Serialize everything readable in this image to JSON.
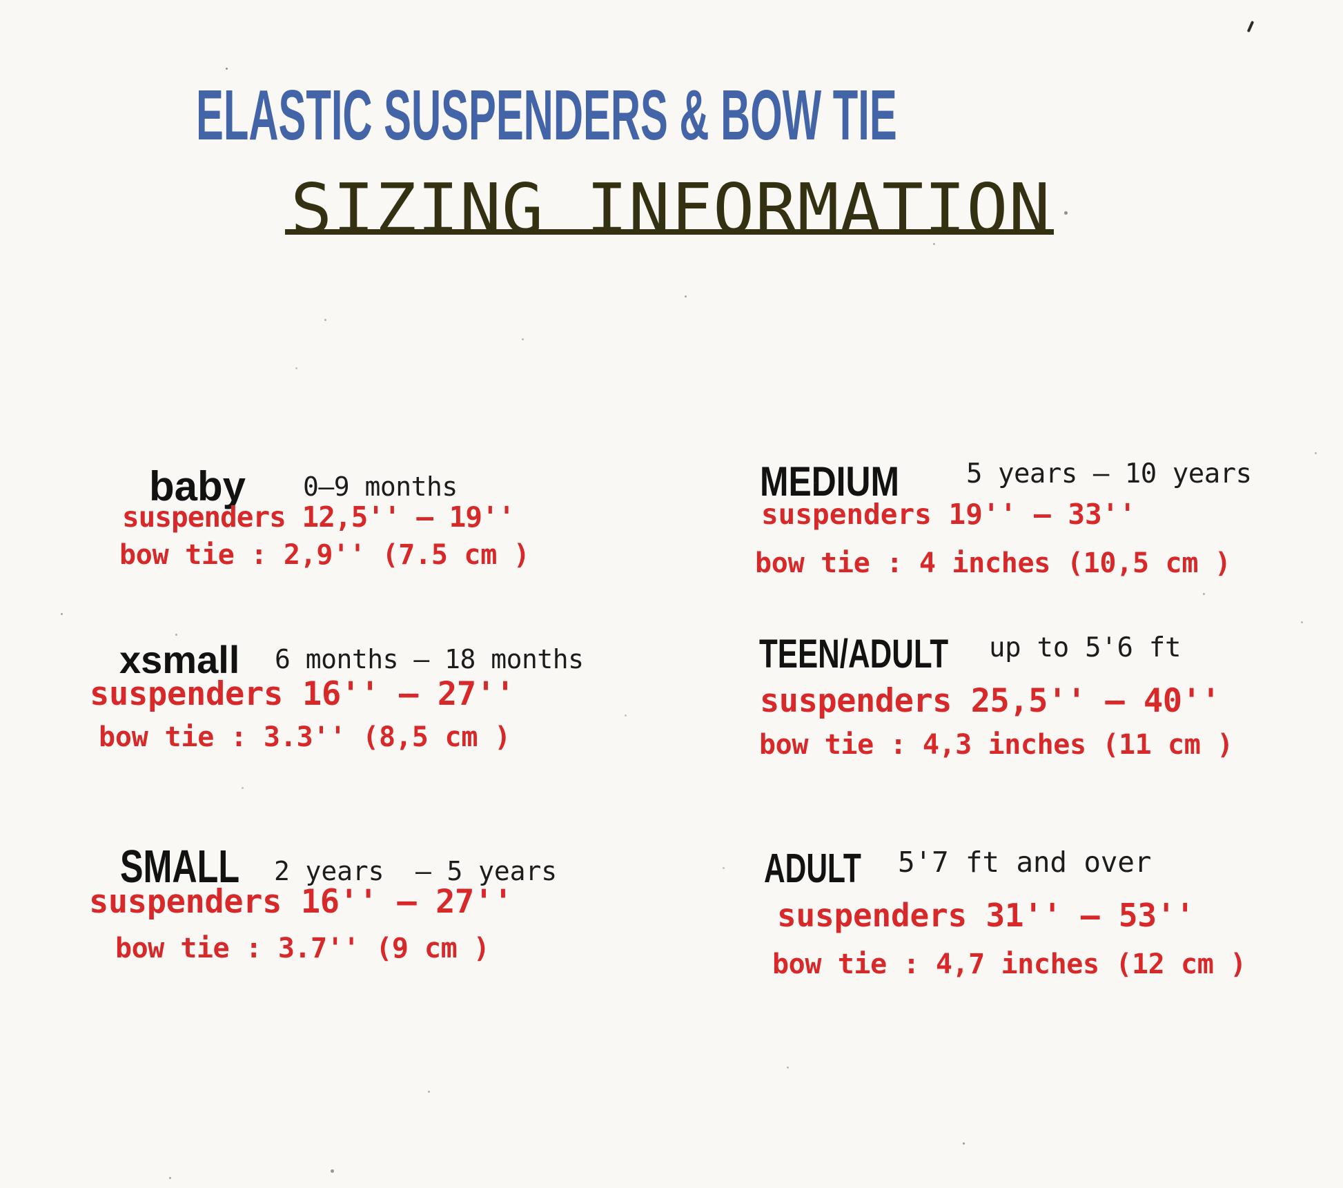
{
  "header": {
    "title": "ELASTIC SUSPENDERS & BOW TIE",
    "subtitle": "SIZING INFORMATION"
  },
  "palette": {
    "title_blue": "#4464a8",
    "subtitle_olive": "#343113",
    "measure_red": "#d7282a",
    "ink_black": "#121212",
    "paper": "#f9f8f4"
  },
  "sizes": [
    {
      "name": "baby",
      "age_range": "0–9 months",
      "suspenders": "suspenders 12,5'' – 19''",
      "bow_tie": "bow tie : 2,9'' (7.5 cm )"
    },
    {
      "name": "xsmall",
      "age_range": "6 months – 18 months",
      "suspenders": "suspenders 16'' – 27''",
      "bow_tie": "bow tie : 3.3'' (8,5 cm )"
    },
    {
      "name": "SMALL",
      "age_range": "2 years  – 5 years",
      "suspenders": "suspenders 16'' – 27''",
      "bow_tie": "bow tie : 3.7'' (9 cm )"
    },
    {
      "name": "MEDIUM",
      "age_range": "5 years – 10 years",
      "suspenders": "suspenders 19'' – 33''",
      "bow_tie": "bow tie : 4 inches (10,5 cm )"
    },
    {
      "name": "TEEN/ADULT",
      "age_range": "up to 5'6 ft",
      "suspenders": "suspenders 25,5'' – 40''",
      "bow_tie": "bow tie : 4,3 inches (11 cm )"
    },
    {
      "name": "ADULT",
      "age_range": "5'7 ft and over",
      "suspenders": "suspenders 31'' – 53''",
      "bow_tie": "bow tie : 4,7 inches (12 cm )"
    }
  ]
}
